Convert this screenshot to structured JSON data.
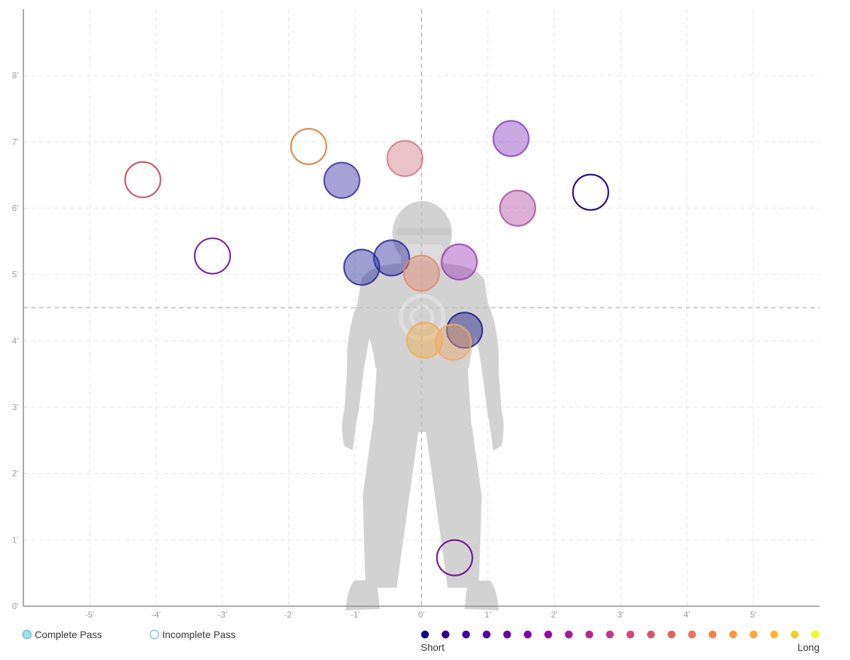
{
  "chart_data": {
    "type": "scatter",
    "title": "",
    "xlabel": "",
    "ylabel": "",
    "xlim": [
      -6,
      6
    ],
    "ylim": [
      0,
      9
    ],
    "x_ticks": [
      "-5'",
      "-4'",
      "-3'",
      "-2'",
      "-1'",
      "0'",
      "1'",
      "2'",
      "3'",
      "4'",
      "5'"
    ],
    "x_tick_values": [
      -5,
      -4,
      -3,
      -2,
      -1,
      0,
      1,
      2,
      3,
      4,
      5
    ],
    "y_ticks": [
      "0'",
      "1'",
      "2'",
      "3'",
      "4'",
      "5'",
      "6'",
      "7'",
      "8'"
    ],
    "y_tick_values": [
      0,
      1,
      2,
      3,
      4,
      5,
      6,
      7,
      8
    ],
    "reference_lines": {
      "x": 0,
      "y": 4.5
    },
    "grid": true,
    "background_figure": "football-player-silhouette",
    "points": [
      {
        "x": -4.2,
        "y": 6.43,
        "complete": false,
        "color": "#c55a6a"
      },
      {
        "x": -3.15,
        "y": 5.28,
        "complete": false,
        "color": "#7b2398"
      },
      {
        "x": -1.7,
        "y": 6.93,
        "complete": false,
        "color": "#e08a4a"
      },
      {
        "x": -1.2,
        "y": 6.42,
        "complete": true,
        "color": "#3f2fa2"
      },
      {
        "x": -0.25,
        "y": 6.75,
        "complete": true,
        "color": "#d07a85"
      },
      {
        "x": 1.35,
        "y": 7.05,
        "complete": true,
        "color": "#8a3fbe"
      },
      {
        "x": 1.45,
        "y": 6.0,
        "complete": true,
        "color": "#b04fa0"
      },
      {
        "x": 2.55,
        "y": 6.24,
        "complete": false,
        "color": "#2a0a7e"
      },
      {
        "x": -0.9,
        "y": 5.11,
        "complete": true,
        "color": "#262a9a"
      },
      {
        "x": -0.45,
        "y": 5.25,
        "complete": true,
        "color": "#2d2c9e"
      },
      {
        "x": 0.0,
        "y": 5.02,
        "complete": true,
        "color": "#e2896c"
      },
      {
        "x": 0.57,
        "y": 5.19,
        "complete": true,
        "color": "#9c3fb6"
      },
      {
        "x": 0.65,
        "y": 4.16,
        "complete": true,
        "color": "#1b1d84"
      },
      {
        "x": 0.05,
        "y": 4.01,
        "complete": true,
        "color": "#f2ad4e"
      },
      {
        "x": 0.48,
        "y": 3.98,
        "complete": true,
        "color": "#f0a86a"
      },
      {
        "x": 0.5,
        "y": 0.73,
        "complete": false,
        "color": "#6a1a9a"
      }
    ]
  },
  "legend": {
    "complete_label": "Complete Pass",
    "incomplete_label": "Incomplete Pass",
    "marker_color": "#56c2cc"
  },
  "distance_scale": {
    "short_label": "Short",
    "long_label": "Long",
    "colors": [
      "#0d0887",
      "#2a0593",
      "#41049d",
      "#5601a4",
      "#6a00a8",
      "#7e03a8",
      "#8f0da4",
      "#a11b9b",
      "#b12a90",
      "#bf3984",
      "#cc4778",
      "#d6556d",
      "#e16462",
      "#ea7457",
      "#f2844b",
      "#f89540",
      "#fca636",
      "#fdb82d",
      "#fbcc27",
      "#f0f921"
    ]
  }
}
